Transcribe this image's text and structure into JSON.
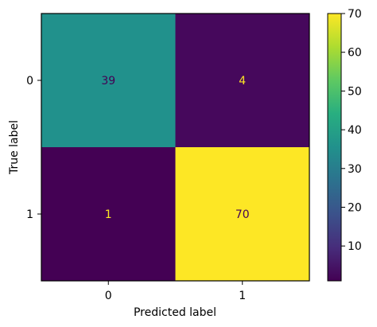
{
  "chart_data": {
    "type": "heatmap",
    "title": "",
    "xlabel": "Predicted label",
    "ylabel": "True label",
    "x_categories": [
      "0",
      "1"
    ],
    "y_categories": [
      "0",
      "1"
    ],
    "values": [
      [
        39,
        4
      ],
      [
        1,
        70
      ]
    ],
    "colormap": "viridis",
    "colorbar": {
      "min": 1,
      "max": 70,
      "ticks": [
        10,
        20,
        30,
        40,
        50,
        60,
        70
      ]
    },
    "cell_colors": [
      [
        "#21918c",
        "#46085c"
      ],
      [
        "#440154",
        "#fde725"
      ]
    ],
    "cell_text_colors": [
      [
        "#440154",
        "#fde725"
      ],
      [
        "#fde725",
        "#440154"
      ]
    ]
  }
}
